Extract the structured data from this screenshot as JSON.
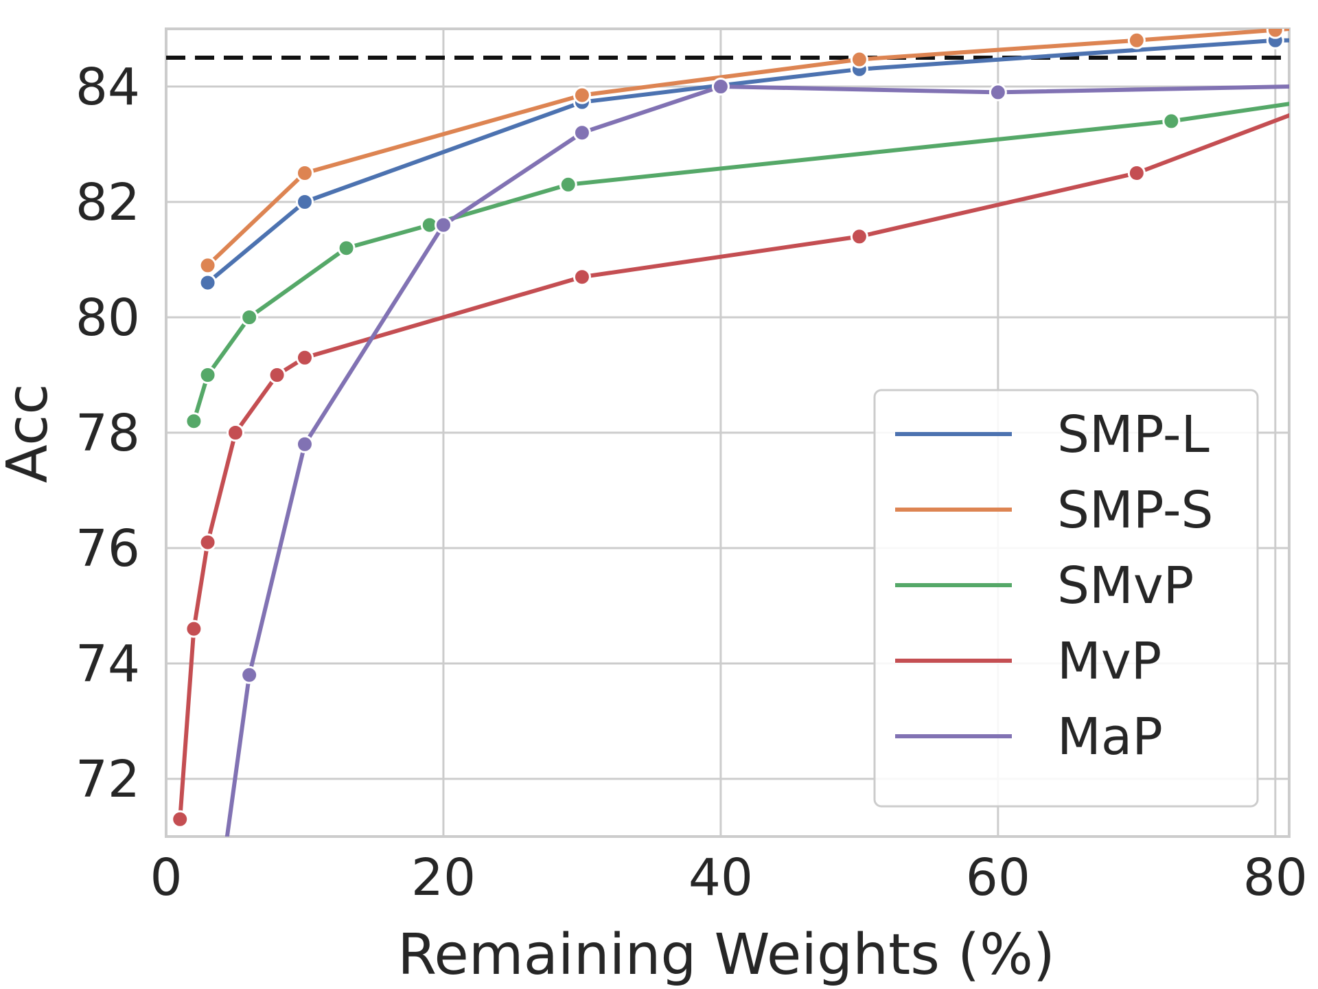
{
  "chart_data": {
    "type": "line",
    "xlabel": "Remaining Weights (%)",
    "ylabel": "Acc",
    "xlim": [
      0,
      81
    ],
    "ylim": [
      71.0,
      85.0
    ],
    "xticks": [
      0,
      20,
      40,
      60,
      80
    ],
    "yticks": [
      72,
      74,
      76,
      78,
      80,
      82,
      84
    ],
    "grid": true,
    "legend_position": "lower-right",
    "reference_line": {
      "y": 84.5,
      "style": "dashed",
      "color": "#111111"
    },
    "series": [
      {
        "name": "SMP-L",
        "color": "#4c72b0",
        "x": [
          3,
          10,
          30,
          40,
          50,
          80,
          81
        ],
        "y": [
          80.6,
          82.0,
          83.73,
          84.02,
          84.3,
          84.8,
          84.8
        ]
      },
      {
        "name": "SMP-S",
        "color": "#dd8452",
        "x": [
          3,
          10,
          30,
          50,
          70,
          80,
          81
        ],
        "y": [
          80.9,
          82.5,
          83.85,
          84.47,
          84.8,
          84.98,
          85.0
        ]
      },
      {
        "name": "SMvP",
        "color": "#55a868",
        "x": [
          2,
          3,
          6,
          13,
          19,
          29,
          72.5,
          81
        ],
        "y": [
          78.2,
          79.0,
          80.0,
          81.2,
          81.6,
          82.3,
          83.4,
          83.7
        ]
      },
      {
        "name": "MvP",
        "color": "#c44e52",
        "x": [
          1,
          2,
          3,
          5,
          8,
          10,
          30,
          50,
          70,
          81
        ],
        "y": [
          71.3,
          74.6,
          76.1,
          78.0,
          79.0,
          79.3,
          80.7,
          81.4,
          82.5,
          83.5
        ]
      },
      {
        "name": "MaP",
        "color": "#8172b3",
        "x": [
          4.4,
          6,
          10,
          20,
          30,
          40,
          60,
          81
        ],
        "y": [
          71.0,
          73.8,
          77.8,
          81.6,
          83.2,
          84.0,
          83.9,
          84.0
        ]
      }
    ],
    "markers": [
      {
        "series": "SMP-L",
        "x": [
          3,
          10,
          30,
          50,
          80
        ]
      },
      {
        "series": "SMP-S",
        "x": [
          3,
          10,
          30,
          50,
          70,
          80
        ]
      },
      {
        "series": "SMvP",
        "x": [
          2,
          3,
          6,
          13,
          19,
          29,
          72.5
        ]
      },
      {
        "series": "MvP",
        "x": [
          1,
          2,
          3,
          5,
          8,
          10,
          30,
          50,
          70
        ]
      },
      {
        "series": "MaP",
        "x": [
          6,
          10,
          20,
          30,
          40,
          60
        ]
      }
    ]
  }
}
